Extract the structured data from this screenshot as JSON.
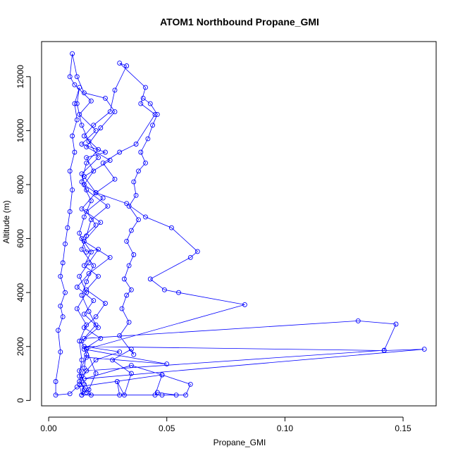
{
  "chart_data": {
    "type": "line",
    "title": "ATOM1 Northbound Propane_GMI",
    "xlabel": "Propane_GMI",
    "ylabel": "Altitude (m)",
    "xlim": [
      -0.003,
      0.164
    ],
    "ylim": [
      -200,
      13300
    ],
    "xticks": [
      0.0,
      0.05,
      0.1,
      0.15
    ],
    "xtick_labels": [
      "0.00",
      "0.05",
      "0.10",
      "0.15"
    ],
    "yticks": [
      0,
      2000,
      4000,
      6000,
      8000,
      10000,
      12000
    ],
    "ytick_labels": [
      "0",
      "2000",
      "4000",
      "6000",
      "8000",
      "10000",
      "12000"
    ],
    "grid": false,
    "series": [
      {
        "color": "#0000ff",
        "marker": "open-circle",
        "points": [
          [
            0.014,
            200
          ],
          [
            0.015,
            600
          ],
          [
            0.013,
            1100
          ],
          [
            0.016,
            1600
          ],
          [
            0.05,
            1350
          ],
          [
            0.015,
            1900
          ],
          [
            0.022,
            2300
          ],
          [
            0.015,
            2700
          ],
          [
            0.02,
            3100
          ],
          [
            0.024,
            3600
          ],
          [
            0.016,
            4100
          ],
          [
            0.021,
            4600
          ],
          [
            0.015,
            5000
          ],
          [
            0.018,
            5500
          ],
          [
            0.014,
            6000
          ],
          [
            0.02,
            6500
          ],
          [
            0.016,
            7000
          ],
          [
            0.023,
            7500
          ],
          [
            0.015,
            8000
          ],
          [
            0.019,
            8500
          ],
          [
            0.016,
            9000
          ],
          [
            0.024,
            9200
          ],
          [
            0.014,
            9500
          ],
          [
            0.02,
            10000
          ],
          [
            0.013,
            10600
          ],
          [
            0.018,
            11100
          ],
          [
            0.011,
            11700
          ],
          [
            0.009,
            12000
          ],
          [
            0.01,
            12850
          ],
          [
            0.012,
            12000
          ],
          [
            0.015,
            11400
          ],
          [
            0.024,
            11200
          ],
          [
            0.028,
            10700
          ],
          [
            0.022,
            10100
          ],
          [
            0.016,
            9400
          ],
          [
            0.026,
            8900
          ],
          [
            0.015,
            8300
          ],
          [
            0.02,
            7700
          ],
          [
            0.014,
            7100
          ],
          [
            0.022,
            6600
          ],
          [
            0.015,
            5900
          ],
          [
            0.026,
            5300
          ],
          [
            0.017,
            4700
          ],
          [
            0.012,
            4200
          ],
          [
            0.019,
            3700
          ],
          [
            0.015,
            3200
          ],
          [
            0.021,
            2700
          ],
          [
            0.014,
            2200
          ],
          [
            0.016,
            1700
          ],
          [
            0.015,
            1200
          ],
          [
            0.013,
            700
          ],
          [
            0.016,
            300
          ],
          [
            0.018,
            200
          ],
          [
            0.014,
            900
          ],
          [
            0.02,
            1500
          ],
          [
            0.03,
            1800
          ],
          [
            0.015,
            2000
          ],
          [
            0.142,
            1850
          ],
          [
            0.159,
            1900
          ],
          [
            0.015,
            800
          ],
          [
            0.035,
            1300
          ],
          [
            0.048,
            950
          ],
          [
            0.012,
            500
          ],
          [
            0.009,
            250
          ],
          [
            0.003,
            200
          ],
          [
            0.003,
            700
          ],
          [
            0.005,
            1800
          ],
          [
            0.004,
            2600
          ],
          [
            0.006,
            3100
          ],
          [
            0.005,
            3500
          ],
          [
            0.007,
            4000
          ],
          [
            0.005,
            4600
          ],
          [
            0.006,
            5100
          ],
          [
            0.007,
            5800
          ],
          [
            0.008,
            6400
          ],
          [
            0.009,
            7000
          ],
          [
            0.01,
            7800
          ],
          [
            0.009,
            8500
          ],
          [
            0.011,
            9200
          ],
          [
            0.01,
            9800
          ],
          [
            0.012,
            10400
          ],
          [
            0.011,
            11000
          ],
          [
            0.013,
            11600
          ],
          [
            0.012,
            11000
          ],
          [
            0.014,
            10200
          ],
          [
            0.017,
            9600
          ],
          [
            0.021,
            9000
          ],
          [
            0.014,
            8400
          ],
          [
            0.016,
            7800
          ],
          [
            0.025,
            7200
          ],
          [
            0.018,
            6700
          ],
          [
            0.016,
            6100
          ],
          [
            0.014,
            5600
          ],
          [
            0.019,
            5000
          ],
          [
            0.016,
            4400
          ],
          [
            0.014,
            3900
          ],
          [
            0.017,
            3300
          ],
          [
            0.02,
            2800
          ],
          [
            0.015,
            2300
          ],
          [
            0.131,
            2950
          ],
          [
            0.147,
            2830
          ],
          [
            0.142,
            1860
          ],
          [
            0.016,
            1100
          ],
          [
            0.013,
            600
          ],
          [
            0.014,
            200
          ],
          [
            0.017,
            400
          ],
          [
            0.02,
            1000
          ],
          [
            0.016,
            1900
          ],
          [
            0.083,
            3550
          ],
          [
            0.055,
            4000
          ],
          [
            0.049,
            4100
          ],
          [
            0.043,
            4500
          ],
          [
            0.06,
            5300
          ],
          [
            0.063,
            5520
          ],
          [
            0.052,
            6400
          ],
          [
            0.041,
            6800
          ],
          [
            0.033,
            7300
          ],
          [
            0.02,
            7700
          ],
          [
            0.028,
            8200
          ],
          [
            0.023,
            8800
          ],
          [
            0.03,
            9200
          ],
          [
            0.037,
            9500
          ],
          [
            0.045,
            10600
          ],
          [
            0.039,
            11000
          ],
          [
            0.041,
            11600
          ],
          [
            0.03,
            12500
          ],
          [
            0.033,
            12400
          ],
          [
            0.028,
            11500
          ],
          [
            0.026,
            10700
          ],
          [
            0.019,
            10200
          ],
          [
            0.015,
            9800
          ],
          [
            0.021,
            9300
          ],
          [
            0.016,
            8800
          ],
          [
            0.014,
            8100
          ],
          [
            0.018,
            7400
          ],
          [
            0.015,
            6800
          ],
          [
            0.013,
            6200
          ],
          [
            0.016,
            5500
          ],
          [
            0.021,
            5600
          ],
          [
            0.017,
            5100
          ],
          [
            0.013,
            4600
          ],
          [
            0.016,
            4000
          ],
          [
            0.012,
            3400
          ],
          [
            0.016,
            2800
          ],
          [
            0.013,
            2200
          ],
          [
            0.014,
            1500
          ],
          [
            0.013,
            900
          ],
          [
            0.015,
            400
          ],
          [
            0.014,
            200
          ],
          [
            0.058,
            200
          ],
          [
            0.06,
            600
          ],
          [
            0.048,
            950
          ],
          [
            0.045,
            200
          ],
          [
            0.046,
            300
          ],
          [
            0.054,
            200
          ],
          [
            0.048,
            200
          ],
          [
            0.03,
            200
          ],
          [
            0.029,
            700
          ],
          [
            0.032,
            200
          ],
          [
            0.035,
            1000
          ],
          [
            0.027,
            1500
          ],
          [
            0.035,
            1900
          ],
          [
            0.036,
            1700
          ],
          [
            0.03,
            2400
          ],
          [
            0.034,
            2900
          ],
          [
            0.031,
            3400
          ],
          [
            0.033,
            3900
          ],
          [
            0.035,
            4100
          ],
          [
            0.032,
            4500
          ],
          [
            0.034,
            5000
          ],
          [
            0.036,
            5400
          ],
          [
            0.033,
            5900
          ],
          [
            0.035,
            6300
          ],
          [
            0.038,
            6700
          ],
          [
            0.034,
            7200
          ],
          [
            0.037,
            7600
          ],
          [
            0.036,
            8100
          ],
          [
            0.038,
            8500
          ],
          [
            0.041,
            8800
          ],
          [
            0.039,
            9200
          ],
          [
            0.042,
            9700
          ],
          [
            0.044,
            10200
          ],
          [
            0.046,
            10600
          ],
          [
            0.043,
            11000
          ],
          [
            0.04,
            11200
          ]
        ]
      }
    ]
  }
}
